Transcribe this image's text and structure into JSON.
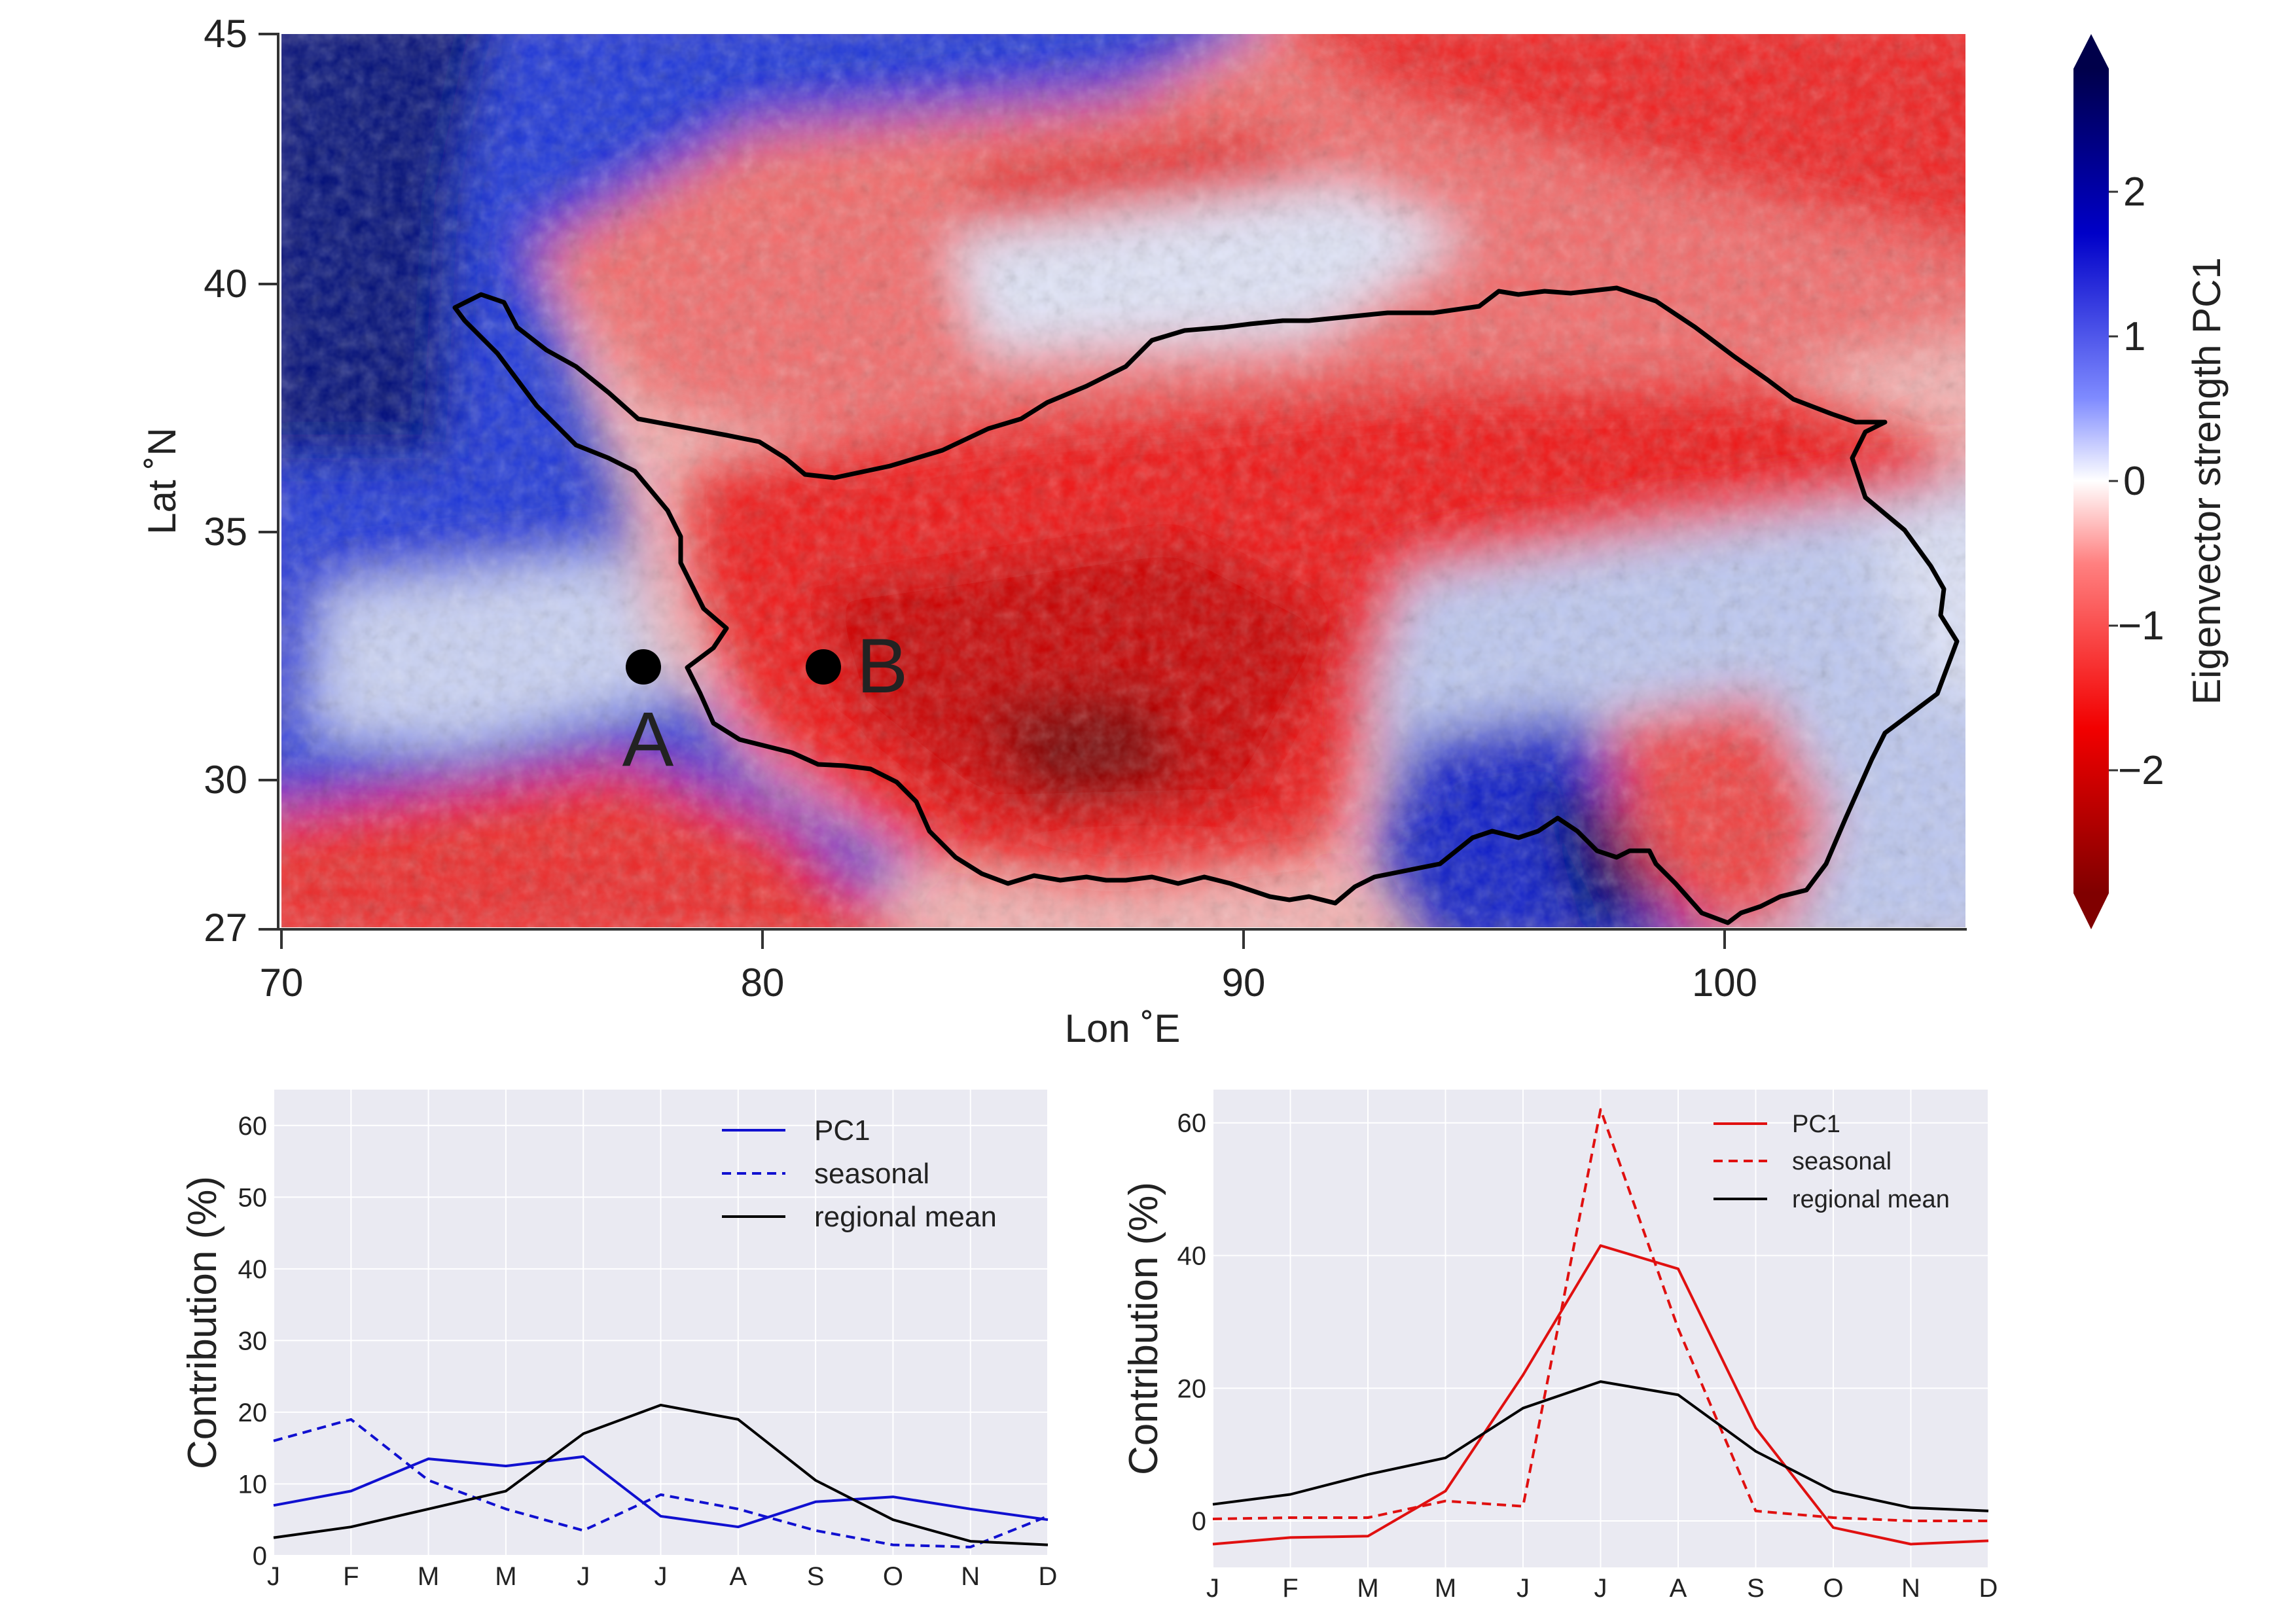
{
  "chart_data": [
    {
      "type": "heatmap",
      "title": "",
      "xlabel": "Lon ˚E",
      "ylabel": "Lat ˚N",
      "xlim": [
        70,
        105
      ],
      "ylim": [
        27,
        45
      ],
      "xticks": [
        "70",
        "80",
        "90",
        "100"
      ],
      "yticks": [
        "27",
        "30",
        "35",
        "40",
        "45"
      ],
      "colorbar": {
        "label": "Eigenvector strength PC1",
        "ticks": [
          "2",
          "1",
          "0",
          "−1",
          "−2"
        ],
        "range": [
          -2.8,
          2.8
        ],
        "colormap": "seismic_r",
        "extend": "both"
      },
      "points": [
        {
          "label": "A",
          "lon": 77.5,
          "lat": 32.3
        },
        {
          "label": "B",
          "lon": 81.3,
          "lat": 32.3
        }
      ],
      "colors": {
        "positive": "#0a1fd6",
        "negative": "#e8100f",
        "zero": "#ffffff",
        "outline": "#000000"
      }
    },
    {
      "type": "line",
      "title": "",
      "xlabel": "",
      "ylabel": "Contribution (%)",
      "categories": [
        "J",
        "F",
        "M",
        "M",
        "J",
        "J",
        "A",
        "S",
        "O",
        "N",
        "D"
      ],
      "ylim": [
        0,
        65
      ],
      "yticks": [
        "0",
        "10",
        "20",
        "30",
        "40",
        "50",
        "60"
      ],
      "grid": true,
      "legend": "top-right",
      "series": [
        {
          "name": "PC1",
          "color": "#1010d0",
          "dash": "solid",
          "values": [
            7,
            9,
            13.5,
            12.5,
            13.8,
            5.5,
            4,
            7.5,
            8.2,
            6.5,
            5
          ]
        },
        {
          "name": "seasonal",
          "color": "#1010d0",
          "dash": "dashed",
          "values": [
            16,
            19,
            10.5,
            6.5,
            3.5,
            8.5,
            6.5,
            3.5,
            1.5,
            1.2,
            5.5
          ]
        },
        {
          "name": "regional mean",
          "color": "#000000",
          "dash": "solid",
          "values": [
            2.5,
            4,
            6.5,
            9,
            17,
            21,
            19,
            10.5,
            5,
            2,
            1.5
          ]
        }
      ]
    },
    {
      "type": "line",
      "title": "",
      "xlabel": "",
      "ylabel": "Contribution (%)",
      "categories": [
        "J",
        "F",
        "M",
        "M",
        "J",
        "J",
        "A",
        "S",
        "O",
        "N",
        "D"
      ],
      "ylim": [
        -7,
        65
      ],
      "yticks": [
        "0",
        "20",
        "40",
        "60"
      ],
      "grid": true,
      "legend": "top-right",
      "series": [
        {
          "name": "PC1",
          "color": "#e01010",
          "dash": "solid",
          "values": [
            -3.5,
            -2.5,
            -2.3,
            4.5,
            22,
            41.5,
            38,
            14,
            -1,
            -3.5,
            -3
          ]
        },
        {
          "name": "seasonal",
          "color": "#e01010",
          "dash": "dashed",
          "values": [
            0.3,
            0.5,
            0.5,
            3,
            2.2,
            62,
            29,
            1.5,
            0.5,
            0,
            0
          ]
        },
        {
          "name": "regional mean",
          "color": "#000000",
          "dash": "solid",
          "values": [
            2.5,
            4,
            7,
            9.5,
            17,
            21,
            19,
            10.5,
            4.5,
            2,
            1.5
          ]
        }
      ]
    }
  ]
}
